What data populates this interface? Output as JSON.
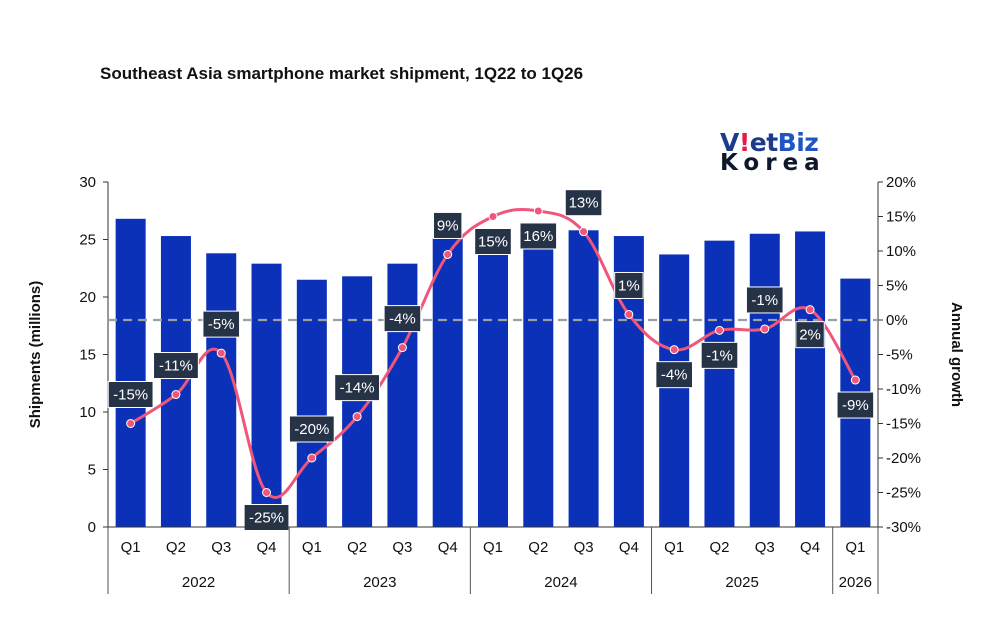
{
  "chart_data": {
    "type": "bar",
    "title": "Southeast Asia smartphone market shipment, 1Q22 to 1Q26",
    "ylabel": "Shipments (millions)",
    "y2label": "Annual growth",
    "ylim": [
      0,
      30
    ],
    "y2lim": [
      -30,
      20
    ],
    "yticks": [
      "0",
      "5",
      "10",
      "15",
      "20",
      "25",
      "30"
    ],
    "y2ticks": [
      "-30%",
      "-25%",
      "-20%",
      "-15%",
      "-10%",
      "-5%",
      "0%",
      "5%",
      "10%",
      "15%",
      "20%"
    ],
    "categories": [
      "Q1",
      "Q2",
      "Q3",
      "Q4",
      "Q1",
      "Q2",
      "Q3",
      "Q4",
      "Q1",
      "Q2",
      "Q3",
      "Q4",
      "Q1",
      "Q2",
      "Q3",
      "Q4",
      "Q1"
    ],
    "years": [
      {
        "label": "2022",
        "span": 4
      },
      {
        "label": "2023",
        "span": 4
      },
      {
        "label": "2024",
        "span": 4
      },
      {
        "label": "2025",
        "span": 4
      },
      {
        "label": "2026",
        "span": 1
      }
    ],
    "series": [
      {
        "type": "bar",
        "axis": "left",
        "color": "#0a31b8",
        "values": [
          26.8,
          25.3,
          23.8,
          22.9,
          21.5,
          21.8,
          22.9,
          25.1,
          25.6,
          25.3,
          25.8,
          25.3,
          23.7,
          24.9,
          25.5,
          25.7,
          21.6
        ]
      },
      {
        "type": "line",
        "axis": "right",
        "color": "#f0557a",
        "values": [
          -15,
          -10.8,
          -4.8,
          -25,
          -20,
          -14,
          -4,
          9.5,
          15,
          15.8,
          12.8,
          0.8,
          -4.3,
          -1.5,
          -1.3,
          1.5,
          -8.7
        ],
        "labels": [
          "-15%",
          "-11%",
          "-5%",
          "-25%",
          "-20%",
          "-14%",
          "-4%",
          "9%",
          "15%",
          "16%",
          "13%",
          "1%",
          "-4%",
          "-1%",
          "-1%",
          "2%",
          "-9%"
        ]
      }
    ],
    "reference_line": {
      "axis": "right",
      "value": 0,
      "style": "dashed"
    },
    "grid": false,
    "legend": "none"
  },
  "logo": {
    "line1_prefix": "V",
    "line1_mark": "!",
    "line1_mid": "et",
    "line1_suffix": "Biz",
    "line2": "Korea"
  }
}
